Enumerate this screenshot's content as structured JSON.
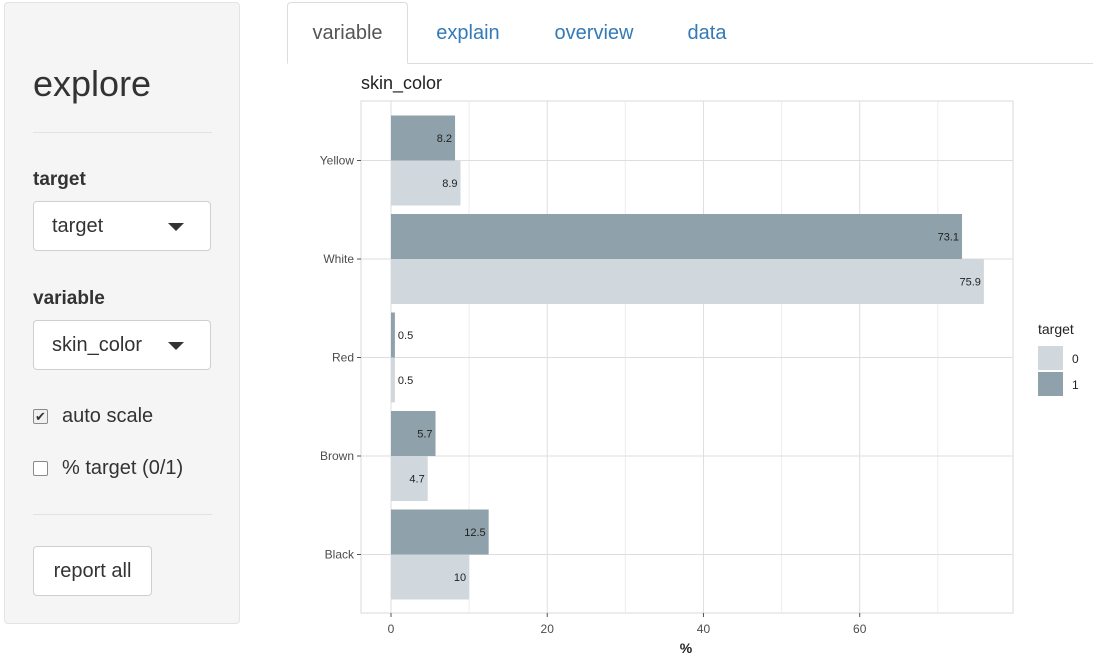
{
  "sidebar": {
    "title": "explore",
    "target_label": "target",
    "target_value": "target",
    "variable_label": "variable",
    "variable_value": "skin_color",
    "auto_scale_label": "auto scale",
    "auto_scale_checked": true,
    "pct_target_label": "% target (0/1)",
    "pct_target_checked": false,
    "report_button": "report all"
  },
  "tabs": [
    {
      "label": "variable",
      "active": true
    },
    {
      "label": "explain",
      "active": false
    },
    {
      "label": "overview",
      "active": false
    },
    {
      "label": "data",
      "active": false
    }
  ],
  "colors": {
    "target_0": "#d1d8dd",
    "target_1": "#8fa1aa",
    "link": "#337ab7"
  },
  "chart_data": {
    "type": "bar",
    "orientation": "horizontal",
    "title": "skin_color",
    "xlabel": "%",
    "ylabel": "",
    "categories": [
      "Yellow",
      "White",
      "Red",
      "Brown",
      "Black"
    ],
    "series": [
      {
        "name": "0",
        "values": [
          8.9,
          75.9,
          0.5,
          4.7,
          10
        ]
      },
      {
        "name": "1",
        "values": [
          8.2,
          73.1,
          0.5,
          5.7,
          12.5
        ]
      }
    ],
    "xlim": [
      0,
      80
    ],
    "xticks": [
      0,
      20,
      40,
      60
    ],
    "legend_title": "target",
    "legend_position": "right",
    "grid": true
  }
}
